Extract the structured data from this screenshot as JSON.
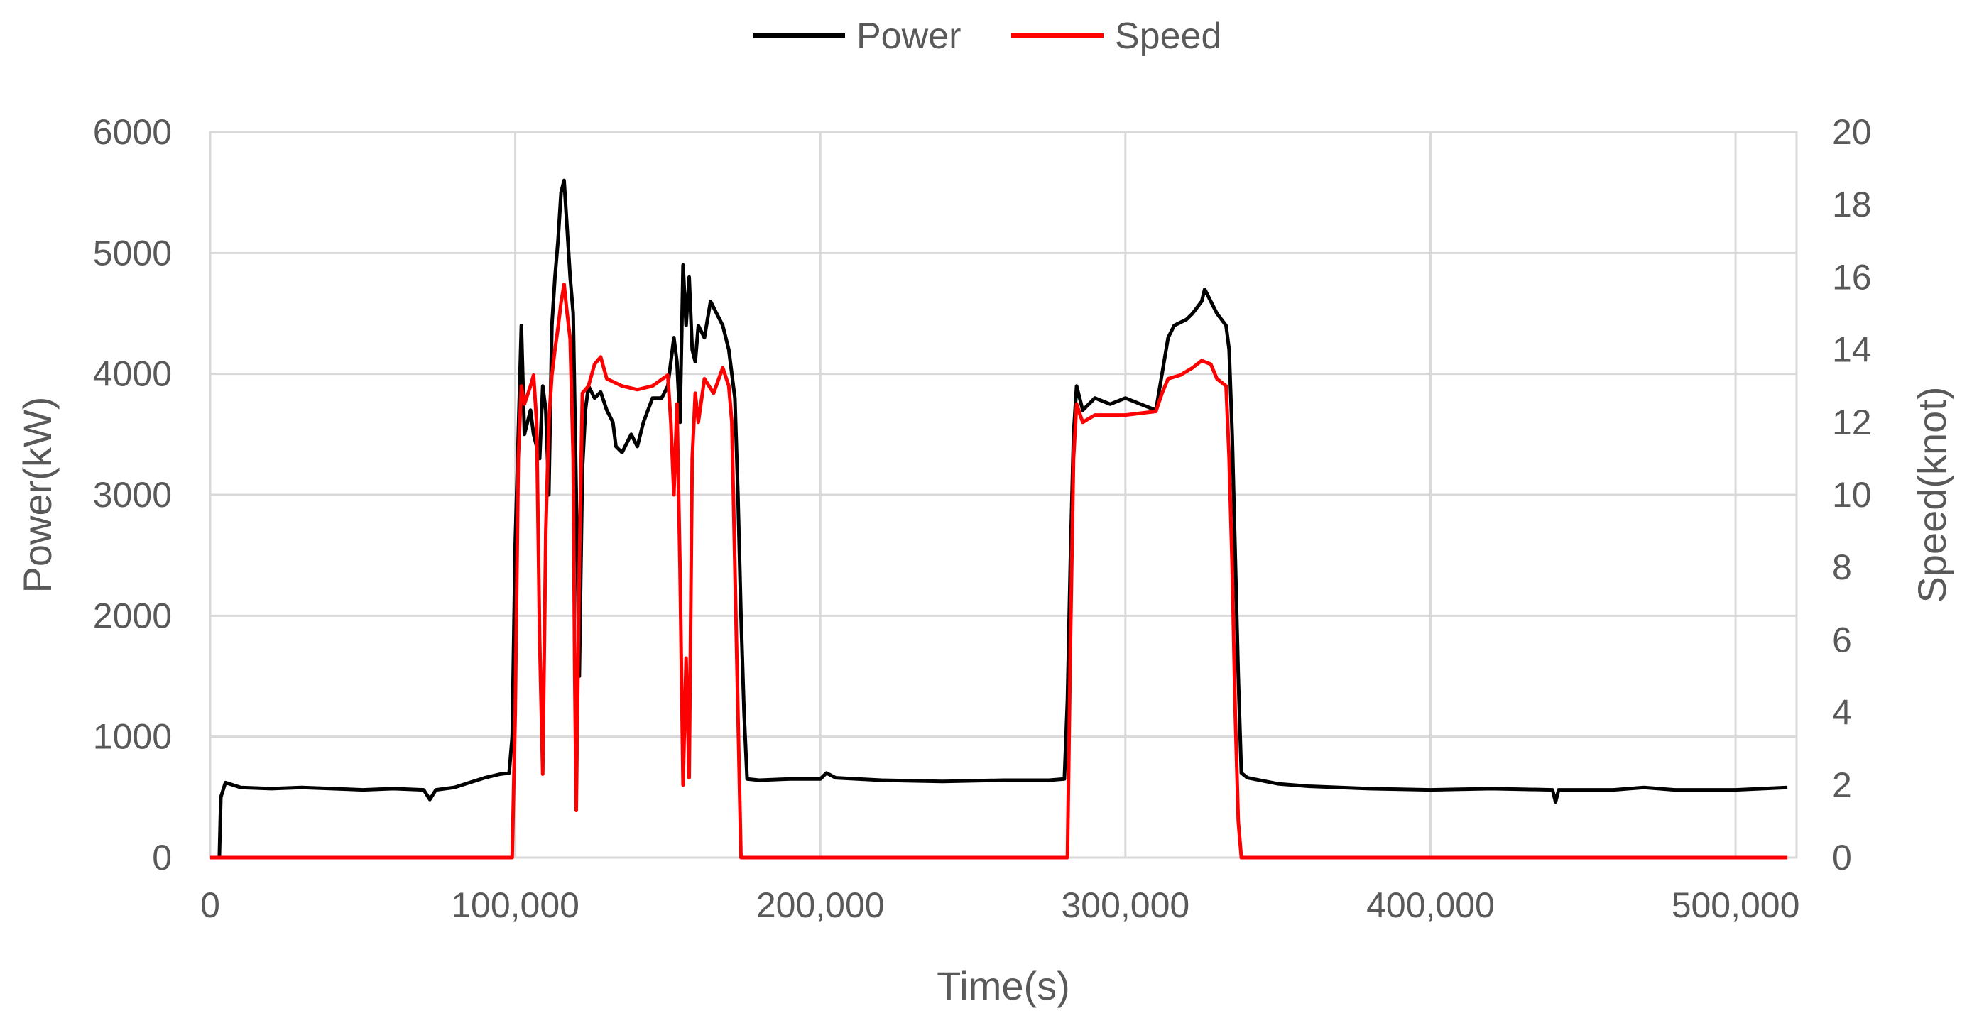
{
  "chart_data": {
    "type": "line",
    "xlabel": "Time(s)",
    "ylabel": "Power(kW)",
    "y2label": "Speed(knot)",
    "xlim": [
      0,
      520000
    ],
    "ylim": [
      0,
      6000
    ],
    "y2lim": [
      0,
      20
    ],
    "x_ticks": [
      "0",
      "100,000",
      "200,000",
      "300,000",
      "400,000",
      "500,000"
    ],
    "y_ticks": [
      "0",
      "1000",
      "2000",
      "3000",
      "4000",
      "5000",
      "6000"
    ],
    "y2_ticks": [
      "0",
      "2",
      "4",
      "6",
      "8",
      "10",
      "12",
      "14",
      "16",
      "18",
      "20"
    ],
    "grid": true,
    "legend_position": "top-center",
    "series": [
      {
        "name": "Power",
        "axis": "left",
        "color": "#000000",
        "points": [
          [
            0,
            0
          ],
          [
            3000,
            0
          ],
          [
            3500,
            500
          ],
          [
            5000,
            620
          ],
          [
            10000,
            580
          ],
          [
            20000,
            570
          ],
          [
            30000,
            580
          ],
          [
            40000,
            570
          ],
          [
            50000,
            560
          ],
          [
            60000,
            570
          ],
          [
            70000,
            560
          ],
          [
            72000,
            480
          ],
          [
            74000,
            560
          ],
          [
            80000,
            580
          ],
          [
            85000,
            620
          ],
          [
            90000,
            660
          ],
          [
            95000,
            690
          ],
          [
            98000,
            700
          ],
          [
            99000,
            1000
          ],
          [
            100000,
            2600
          ],
          [
            101000,
            3500
          ],
          [
            102000,
            4400
          ],
          [
            103000,
            3500
          ],
          [
            105000,
            3700
          ],
          [
            106000,
            3500
          ],
          [
            108000,
            3300
          ],
          [
            109000,
            3900
          ],
          [
            110000,
            3700
          ],
          [
            111000,
            3000
          ],
          [
            112000,
            4400
          ],
          [
            113000,
            4800
          ],
          [
            114000,
            5100
          ],
          [
            115000,
            5500
          ],
          [
            116000,
            5600
          ],
          [
            117000,
            5200
          ],
          [
            118000,
            4800
          ],
          [
            119000,
            4500
          ],
          [
            120000,
            3000
          ],
          [
            121000,
            1500
          ],
          [
            122000,
            3200
          ],
          [
            123000,
            3700
          ],
          [
            124000,
            3900
          ],
          [
            126000,
            3800
          ],
          [
            128000,
            3850
          ],
          [
            130000,
            3700
          ],
          [
            132000,
            3600
          ],
          [
            133000,
            3400
          ],
          [
            135000,
            3350
          ],
          [
            138000,
            3500
          ],
          [
            140000,
            3400
          ],
          [
            142000,
            3600
          ],
          [
            145000,
            3800
          ],
          [
            148000,
            3800
          ],
          [
            150000,
            3900
          ],
          [
            152000,
            4300
          ],
          [
            153000,
            4100
          ],
          [
            154000,
            3600
          ],
          [
            155000,
            4900
          ],
          [
            156000,
            4400
          ],
          [
            157000,
            4800
          ],
          [
            158000,
            4200
          ],
          [
            159000,
            4100
          ],
          [
            160000,
            4400
          ],
          [
            162000,
            4300
          ],
          [
            164000,
            4600
          ],
          [
            166000,
            4500
          ],
          [
            168000,
            4400
          ],
          [
            170000,
            4200
          ],
          [
            172000,
            3800
          ],
          [
            173000,
            3000
          ],
          [
            174000,
            2000
          ],
          [
            175000,
            1200
          ],
          [
            176000,
            650
          ],
          [
            180000,
            640
          ],
          [
            190000,
            650
          ],
          [
            200000,
            650
          ],
          [
            202000,
            700
          ],
          [
            205000,
            660
          ],
          [
            220000,
            640
          ],
          [
            240000,
            630
          ],
          [
            260000,
            640
          ],
          [
            275000,
            640
          ],
          [
            280000,
            650
          ],
          [
            281000,
            1300
          ],
          [
            282000,
            2500
          ],
          [
            283000,
            3500
          ],
          [
            284000,
            3900
          ],
          [
            286000,
            3700
          ],
          [
            288000,
            3750
          ],
          [
            290000,
            3800
          ],
          [
            295000,
            3750
          ],
          [
            300000,
            3800
          ],
          [
            305000,
            3750
          ],
          [
            310000,
            3700
          ],
          [
            312000,
            4000
          ],
          [
            314000,
            4300
          ],
          [
            316000,
            4400
          ],
          [
            320000,
            4450
          ],
          [
            322000,
            4500
          ],
          [
            325000,
            4600
          ],
          [
            326000,
            4700
          ],
          [
            328000,
            4600
          ],
          [
            330000,
            4500
          ],
          [
            333000,
            4400
          ],
          [
            334000,
            4200
          ],
          [
            335000,
            3500
          ],
          [
            336000,
            2500
          ],
          [
            337000,
            1500
          ],
          [
            338000,
            700
          ],
          [
            340000,
            660
          ],
          [
            350000,
            610
          ],
          [
            360000,
            590
          ],
          [
            380000,
            570
          ],
          [
            400000,
            560
          ],
          [
            420000,
            570
          ],
          [
            440000,
            560
          ],
          [
            441000,
            460
          ],
          [
            442000,
            560
          ],
          [
            460000,
            560
          ],
          [
            470000,
            580
          ],
          [
            480000,
            560
          ],
          [
            500000,
            560
          ],
          [
            517000,
            580
          ]
        ]
      },
      {
        "name": "Speed",
        "axis": "right",
        "color": "#ff0000",
        "points": [
          [
            0,
            0
          ],
          [
            99000,
            0
          ],
          [
            100000,
            4
          ],
          [
            101000,
            11
          ],
          [
            102000,
            13
          ],
          [
            103000,
            12.5
          ],
          [
            105000,
            13
          ],
          [
            106000,
            13.3
          ],
          [
            107000,
            12
          ],
          [
            108000,
            6
          ],
          [
            109000,
            2.3
          ],
          [
            110000,
            9
          ],
          [
            111000,
            12
          ],
          [
            112000,
            13.3
          ],
          [
            113000,
            14
          ],
          [
            114000,
            14.6
          ],
          [
            115000,
            15.3
          ],
          [
            116000,
            15.8
          ],
          [
            117000,
            15
          ],
          [
            118000,
            14.3
          ],
          [
            119000,
            11
          ],
          [
            119500,
            5
          ],
          [
            120000,
            1.3
          ],
          [
            121000,
            8
          ],
          [
            122000,
            12.8
          ],
          [
            124000,
            13
          ],
          [
            126000,
            13.6
          ],
          [
            128000,
            13.8
          ],
          [
            130000,
            13.2
          ],
          [
            135000,
            13
          ],
          [
            140000,
            12.9
          ],
          [
            145000,
            13
          ],
          [
            150000,
            13.3
          ],
          [
            151000,
            12
          ],
          [
            152000,
            10
          ],
          [
            153000,
            12.5
          ],
          [
            154000,
            8
          ],
          [
            155000,
            2
          ],
          [
            156000,
            5.5
          ],
          [
            157000,
            2.2
          ],
          [
            158000,
            11
          ],
          [
            159000,
            12.8
          ],
          [
            160000,
            12
          ],
          [
            162000,
            13.2
          ],
          [
            165000,
            12.8
          ],
          [
            168000,
            13.5
          ],
          [
            170000,
            13
          ],
          [
            171000,
            12
          ],
          [
            172000,
            8
          ],
          [
            173000,
            4
          ],
          [
            174000,
            0
          ],
          [
            281000,
            0
          ],
          [
            282000,
            6
          ],
          [
            283000,
            11
          ],
          [
            284000,
            12.5
          ],
          [
            286000,
            12
          ],
          [
            290000,
            12.2
          ],
          [
            300000,
            12.2
          ],
          [
            310000,
            12.3
          ],
          [
            312000,
            12.8
          ],
          [
            314000,
            13.2
          ],
          [
            318000,
            13.3
          ],
          [
            322000,
            13.5
          ],
          [
            325000,
            13.7
          ],
          [
            328000,
            13.6
          ],
          [
            330000,
            13.2
          ],
          [
            333000,
            13
          ],
          [
            334000,
            11
          ],
          [
            335000,
            8
          ],
          [
            336000,
            4
          ],
          [
            337000,
            1
          ],
          [
            338000,
            0
          ],
          [
            517000,
            0
          ]
        ]
      }
    ]
  }
}
